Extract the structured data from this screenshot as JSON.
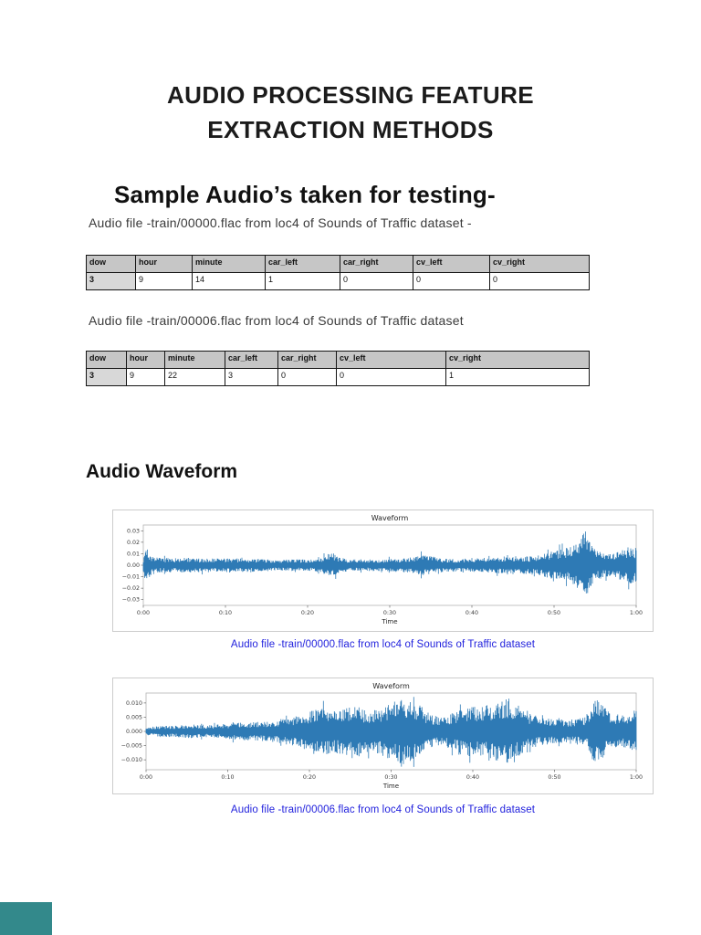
{
  "colors": {
    "waveform": "#2e7ab5",
    "caption": "#2222dd",
    "teal_corner": "#33898b"
  },
  "document": {
    "title_lines": [
      "AUDIO PROCESSING FEATURE",
      "EXTRACTION METHODS"
    ],
    "section_heading": "Sample Audio’s taken for testing-",
    "intro1": "Audio file -train/00000.flac from loc4 of Sounds of Traffic dataset -",
    "intro2": "Audio file -train/00006.flac from loc4 of Sounds of Traffic dataset",
    "waveform_heading": "Audio Waveform"
  },
  "tables": [
    {
      "headers": [
        "dow",
        "hour",
        "minute",
        "car_left",
        "car_right",
        "cv_left",
        "cv_right"
      ],
      "rows": [
        [
          "3",
          "9",
          "14",
          "1",
          "0",
          "0",
          "0"
        ]
      ]
    },
    {
      "headers": [
        "dow",
        "hour",
        "minute",
        "car_left",
        "car_right",
        "cv_left",
        "cv_right"
      ],
      "rows": [
        [
          "3",
          "9",
          "22",
          "3",
          "0",
          "0",
          "1"
        ]
      ]
    }
  ],
  "chart_data": [
    {
      "type": "area",
      "title": "Waveform",
      "xlabel": "Time",
      "caption": "Audio file -train/00000.flac from loc4 of Sounds of Traffic dataset",
      "x_tick_labels": [
        "0:00",
        "0:10",
        "0:20",
        "0:30",
        "0:40",
        "0:50",
        "1:00"
      ],
      "y_tick_values": [
        0.03,
        0.02,
        0.01,
        0.0,
        -0.01,
        -0.02,
        -0.03
      ],
      "y_tick_labels": [
        "0.03",
        "0.02",
        "0.01",
        "0.00",
        "−0.01",
        "−0.02",
        "−0.03"
      ],
      "ylim": [
        -0.035,
        0.035
      ],
      "envelope_t": [
        0,
        0.004,
        0.008,
        0.015,
        0.03,
        0.06,
        0.09,
        0.12,
        0.15,
        0.18,
        0.21,
        0.24,
        0.27,
        0.3,
        0.33,
        0.36,
        0.375,
        0.385,
        0.395,
        0.42,
        0.45,
        0.48,
        0.51,
        0.54,
        0.56,
        0.58,
        0.61,
        0.64,
        0.67,
        0.7,
        0.72,
        0.74,
        0.76,
        0.78,
        0.8,
        0.82,
        0.84,
        0.86,
        0.88,
        0.893,
        0.905,
        0.92,
        0.94,
        0.955,
        0.97,
        0.985,
        1.0
      ],
      "envelope_a": [
        0.004,
        0.02,
        0.014,
        0.009,
        0.0065,
        0.006,
        0.0065,
        0.006,
        0.0062,
        0.0058,
        0.006,
        0.0052,
        0.005,
        0.005,
        0.0052,
        0.006,
        0.01,
        0.011,
        0.007,
        0.005,
        0.005,
        0.0052,
        0.0058,
        0.0068,
        0.0095,
        0.008,
        0.006,
        0.0055,
        0.006,
        0.0065,
        0.007,
        0.0085,
        0.008,
        0.0075,
        0.009,
        0.011,
        0.013,
        0.015,
        0.02,
        0.034,
        0.021,
        0.013,
        0.01,
        0.011,
        0.013,
        0.016,
        0.015
      ]
    },
    {
      "type": "area",
      "title": "Waveform",
      "xlabel": "Time",
      "caption": "Audio file -train/00006.flac from loc4 of Sounds of Traffic dataset",
      "x_tick_labels": [
        "0:00",
        "0:10",
        "0:20",
        "0:30",
        "0:40",
        "0:50",
        "1:00"
      ],
      "y_tick_values": [
        0.01,
        0.005,
        0.0,
        -0.005,
        -0.01
      ],
      "y_tick_labels": [
        "0.010",
        "0.005",
        "0.000",
        "−0.005",
        "−0.010"
      ],
      "ylim": [
        -0.0135,
        0.0135
      ],
      "envelope_t": [
        0,
        0.03,
        0.06,
        0.09,
        0.12,
        0.15,
        0.18,
        0.21,
        0.24,
        0.27,
        0.3,
        0.32,
        0.34,
        0.36,
        0.38,
        0.4,
        0.42,
        0.44,
        0.46,
        0.48,
        0.5,
        0.52,
        0.54,
        0.56,
        0.58,
        0.6,
        0.62,
        0.64,
        0.66,
        0.68,
        0.7,
        0.72,
        0.74,
        0.76,
        0.78,
        0.8,
        0.83,
        0.86,
        0.89,
        0.905,
        0.917,
        0.93,
        0.95,
        0.97,
        0.99,
        1.0
      ],
      "envelope_a": [
        0.0015,
        0.002,
        0.002,
        0.0025,
        0.002,
        0.0025,
        0.003,
        0.0032,
        0.0035,
        0.004,
        0.005,
        0.006,
        0.0078,
        0.009,
        0.0075,
        0.008,
        0.0095,
        0.008,
        0.007,
        0.0085,
        0.01,
        0.0115,
        0.012,
        0.009,
        0.006,
        0.005,
        0.006,
        0.0075,
        0.009,
        0.0085,
        0.0095,
        0.011,
        0.0115,
        0.009,
        0.006,
        0.005,
        0.0045,
        0.004,
        0.005,
        0.007,
        0.013,
        0.0095,
        0.006,
        0.0055,
        0.007,
        0.0075
      ]
    }
  ]
}
